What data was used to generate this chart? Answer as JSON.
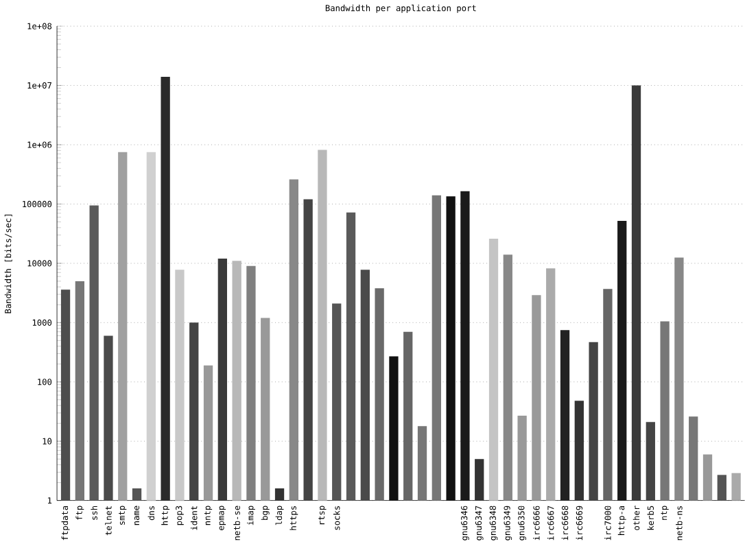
{
  "chart_data": {
    "type": "bar",
    "title": "Bandwidth per application port",
    "ylabel": "Bandwidth [bits/sec]",
    "categories": [
      "ftpdata",
      "ftp",
      "ssh",
      "telnet",
      "smtp",
      "name",
      "dns",
      "http",
      "pop3",
      "ident",
      "nntp",
      "epmap",
      "netb-se",
      "imap",
      "bgp",
      "ldap",
      "https",
      null,
      "rtsp",
      "socks",
      null,
      null,
      null,
      null,
      null,
      null,
      null,
      null,
      "gnu6346",
      "gnu6347",
      "gnu6348",
      "gnu6349",
      "gnu6350",
      "irc6666",
      "irc6667",
      "irc6668",
      "irc6669",
      null,
      "irc7000",
      "http-a",
      "other",
      "kerb5",
      "ntp",
      "netb-ns",
      null,
      null,
      null,
      null
    ],
    "values": [
      3600,
      5000,
      95000,
      600,
      750000,
      1.6,
      750000,
      14000000,
      7800,
      1000,
      190,
      12000,
      11000,
      9000,
      1200,
      1.6,
      260000,
      120000,
      820000,
      2100,
      72000,
      7800,
      3800,
      270,
      700,
      18,
      140000,
      135000,
      165000,
      5,
      26000,
      14000,
      27,
      2900,
      8200,
      750,
      48,
      470,
      3700,
      52000,
      10000000,
      21,
      1050,
      12500,
      26,
      6,
      2.7,
      2.9
    ],
    "colors": [
      "#4d4d4d",
      "#777777",
      "#5a5a5a",
      "#4a4a4a",
      "#a0a0a0",
      "#555555",
      "#d0d0d0",
      "#2a2a2a",
      "#c8c8c8",
      "#444444",
      "#999999",
      "#3a3a3a",
      "#b8b8b8",
      "#808080",
      "#999999",
      "#333333",
      "#888888",
      "#444444",
      "#b8b8b8",
      "#555555",
      "#5a5a5a",
      "#4a4a4a",
      "#6a6a6a",
      "#111111",
      "#666666",
      "#777777",
      "#777777",
      "#111111",
      "#1a1a1a",
      "#333333",
      "#c4c4c4",
      "#888888",
      "#999999",
      "#999999",
      "#aaaaaa",
      "#222222",
      "#333333",
      "#444444",
      "#666666",
      "#1a1a1a",
      "#3a3a3a",
      "#444444",
      "#777777",
      "#888888",
      "#777777",
      "#999999",
      "#555555",
      "#aaaaaa"
    ],
    "log": "y",
    "ylim": [
      1,
      100000000
    ],
    "yticks": [
      1,
      10,
      100,
      1000,
      10000,
      100000,
      {
        "value": 1000000,
        "label": "1e+06"
      },
      {
        "value": 10000000,
        "label": "1e+07"
      },
      {
        "value": 100000000,
        "label": "1e+08"
      }
    ],
    "grid": "y"
  }
}
